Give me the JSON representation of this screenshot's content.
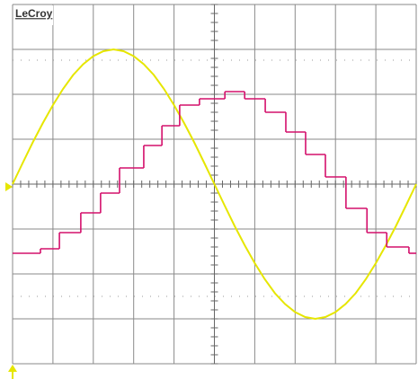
{
  "logo": "LeCroy",
  "chart_data": {
    "type": "line",
    "xlim": [
      0,
      10
    ],
    "ylim": [
      -4,
      4
    ],
    "xticks": [
      0,
      1,
      2,
      3,
      4,
      5,
      6,
      7,
      8,
      9,
      10
    ],
    "yticks": [
      -4,
      -3,
      -2,
      -1,
      0,
      1,
      2,
      3,
      4
    ],
    "grid": true,
    "tick_labels": false,
    "series": [
      {
        "color": "#e6e600",
        "step": false,
        "x": [
          0,
          0.25,
          0.5,
          0.75,
          1,
          1.25,
          1.5,
          1.75,
          2,
          2.25,
          2.5,
          2.75,
          3,
          3.25,
          3.5,
          3.75,
          4,
          4.25,
          4.5,
          4.75,
          5,
          5.25,
          5.5,
          5.75,
          6,
          6.25,
          6.5,
          6.75,
          7,
          7.25,
          7.5,
          7.75,
          8,
          8.25,
          8.5,
          8.75,
          9,
          9.25,
          9.5,
          9.75,
          10
        ],
        "values": [
          0,
          0.47,
          0.93,
          1.36,
          1.76,
          2.12,
          2.43,
          2.67,
          2.85,
          2.96,
          3,
          2.96,
          2.85,
          2.67,
          2.43,
          2.12,
          1.76,
          1.36,
          0.93,
          0.47,
          0,
          -0.47,
          -0.93,
          -1.36,
          -1.76,
          -2.12,
          -2.43,
          -2.67,
          -2.85,
          -2.96,
          -3,
          -2.96,
          -2.85,
          -2.67,
          -2.43,
          -2.12,
          -1.76,
          -1.36,
          -0.93,
          -0.47,
          0
        ]
      },
      {
        "color": "#d4106c",
        "step": true,
        "x": [
          0,
          0.69,
          1.16,
          1.69,
          2.18,
          2.65,
          3.25,
          3.7,
          4.14,
          4.63,
          5.26,
          5.75,
          6.26,
          6.77,
          7.26,
          7.75,
          8.26,
          8.78,
          9.27,
          9.82
        ],
        "values": [
          -1.54,
          -1.44,
          -1.08,
          -0.64,
          -0.2,
          0.36,
          0.86,
          1.3,
          1.76,
          1.9,
          2.06,
          1.9,
          1.6,
          1.16,
          0.66,
          0.16,
          -0.54,
          -1.08,
          -1.4,
          -1.54
        ]
      }
    ]
  }
}
